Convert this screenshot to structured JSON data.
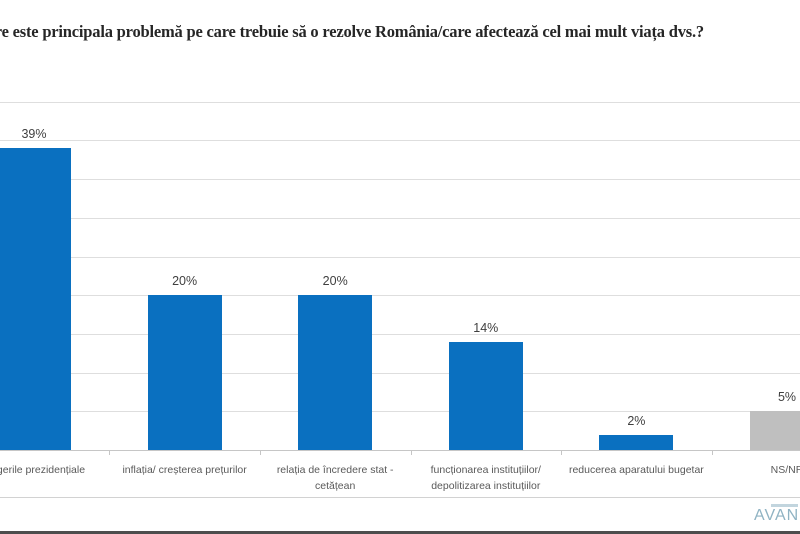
{
  "title": "Care este principala problemă pe care trebuie să o rezolve România/care afectează cel mai mult viața dvs.?",
  "chart_data": {
    "type": "bar",
    "title": "Care este principala problemă pe care trebuie să o rezolve România/care afectează cel mai mult viața dvs.?",
    "categories": [
      "alegerile  prezidențiale",
      "inflația/ creșterea prețurilor",
      "relația de încredere stat - cetățean",
      "funcționarea instituțiilor/ depolitizarea instituțiilor",
      "reducerea aparatului bugetar",
      "NS/NR"
    ],
    "category_lines": [
      [
        "alegerile  prezidențiale"
      ],
      [
        "inflația/ creșterea prețurilor"
      ],
      [
        "relația de încredere stat -",
        "cetățean"
      ],
      [
        "funcționarea instituțiilor/",
        "depolitizarea instituțiilor"
      ],
      [
        "reducerea aparatului bugetar"
      ],
      [
        "NS/NR"
      ]
    ],
    "values": [
      39,
      20,
      20,
      14,
      2,
      5
    ],
    "data_labels": [
      "39%",
      "20%",
      "20%",
      "14%",
      "2%",
      "5%"
    ],
    "bar_colors": [
      "#0a70c0",
      "#0a70c0",
      "#0a70c0",
      "#0a70c0",
      "#0a70c0",
      "#bfbfbf"
    ],
    "ylim": [
      0,
      45
    ],
    "gridline_step_pct": 5,
    "grid": true,
    "legend": false,
    "xlabel": "",
    "ylabel": "",
    "layout_hint": "single-series column chart, cropped at left and right image edges, value labels above bars, no y-axis tick labels visible"
  },
  "footer": {
    "logo_text": "AVANGARDE"
  },
  "colors": {
    "bar_blue": "#0a70c0",
    "bar_gray": "#bfbfbf",
    "gridline": "#dedede",
    "axis_line": "#c6c6c6",
    "value_label": "#3f3f3f",
    "category_label": "#595959",
    "title_text": "#262626",
    "logo_teal": "#8fb3c3",
    "bottom_strip": "#4d4d4d"
  }
}
